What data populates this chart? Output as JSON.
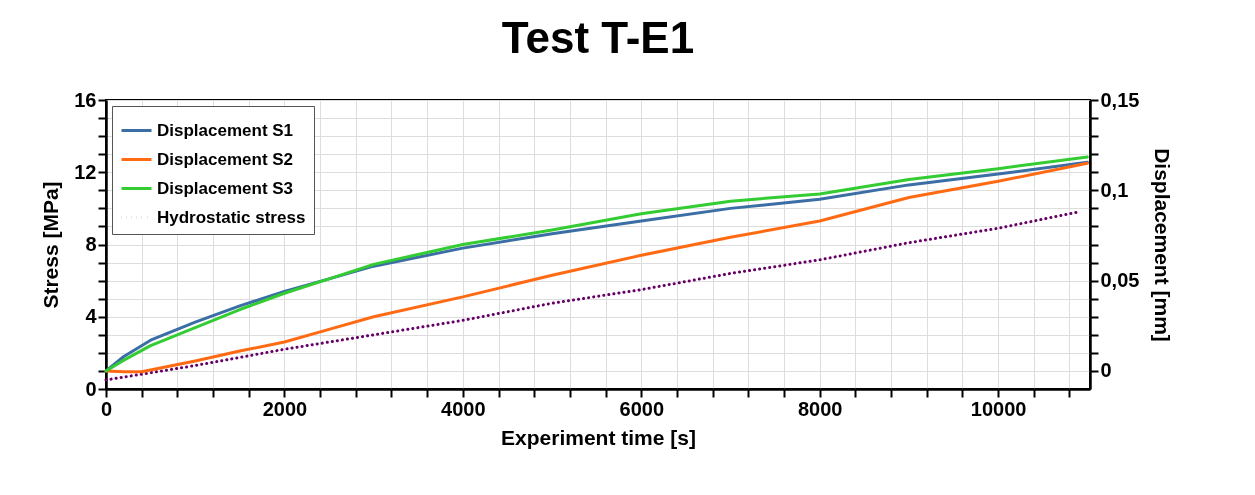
{
  "chart_data": {
    "type": "line",
    "title": "Test T-E1",
    "xlabel": "Experiment time [s]",
    "ylabel": "Stress [MPa]",
    "y2label": "Displacement [mm]",
    "xlim": [
      0,
      11030
    ],
    "ylim": [
      0,
      16
    ],
    "y2lim": [
      -0.01,
      0.15
    ],
    "xticks": [
      0,
      {
        "value": 400,
        "label": null
      },
      {
        "value": 800,
        "label": null
      },
      {
        "value": 1200,
        "label": null
      },
      {
        "value": 1600,
        "label": null
      },
      2000,
      {
        "value": 2400,
        "label": null
      },
      {
        "value": 2800,
        "label": null
      },
      {
        "value": 3200,
        "label": null
      },
      {
        "value": 3600,
        "label": null
      },
      4000,
      {
        "value": 4400,
        "label": null
      },
      {
        "value": 4800,
        "label": null
      },
      {
        "value": 5200,
        "label": null
      },
      {
        "value": 5600,
        "label": null
      },
      6000,
      {
        "value": 6400,
        "label": null
      },
      {
        "value": 6800,
        "label": null
      },
      {
        "value": 7200,
        "label": null
      },
      {
        "value": 7600,
        "label": null
      },
      8000,
      {
        "value": 8400,
        "label": null
      },
      {
        "value": 8800,
        "label": null
      },
      {
        "value": 9200,
        "label": null
      },
      {
        "value": 9600,
        "label": null
      },
      10000,
      {
        "value": 10400,
        "label": null
      },
      {
        "value": 10800,
        "label": null
      }
    ],
    "yticks": [
      0,
      {
        "value": 1,
        "label": null
      },
      {
        "value": 2,
        "label": null
      },
      {
        "value": 3,
        "label": null
      },
      4,
      {
        "value": 5,
        "label": null
      },
      {
        "value": 6,
        "label": null
      },
      {
        "value": 7,
        "label": null
      },
      8,
      {
        "value": 9,
        "label": null
      },
      {
        "value": 10,
        "label": null
      },
      {
        "value": 11,
        "label": null
      },
      12,
      {
        "value": 13,
        "label": null
      },
      {
        "value": 14,
        "label": null
      },
      {
        "value": 15,
        "label": null
      },
      16
    ],
    "y2ticks": [
      0,
      {
        "value": 0.01,
        "label": null
      },
      {
        "value": 0.02,
        "label": null
      },
      {
        "value": 0.03,
        "label": null
      },
      {
        "value": 0.04,
        "label": null
      },
      {
        "value": 0.05,
        "label": "0,05"
      },
      {
        "value": 0.06,
        "label": null
      },
      {
        "value": 0.07,
        "label": null
      },
      {
        "value": 0.08,
        "label": null
      },
      {
        "value": 0.09,
        "label": null
      },
      {
        "value": 0.1,
        "label": "0,1"
      },
      {
        "value": 0.11,
        "label": null
      },
      {
        "value": 0.12,
        "label": null
      },
      {
        "value": 0.13,
        "label": null
      },
      {
        "value": 0.14,
        "label": null
      },
      {
        "value": 0.15,
        "label": "0,15"
      }
    ],
    "grid": true,
    "legend": "top left",
    "series": [
      {
        "name": "Displacement S1",
        "color": "#3a6ea5",
        "axis": "y2",
        "line_style": "solid",
        "x": [
          0,
          200,
          500,
          1000,
          1500,
          2000,
          2500,
          3000,
          4000,
          5000,
          6000,
          7000,
          8000,
          9000,
          10000,
          11000
        ],
        "values": [
          0,
          0.008,
          0.017,
          0.027,
          0.036,
          0.044,
          0.051,
          0.058,
          0.068,
          0.076,
          0.083,
          0.09,
          0.095,
          0.103,
          0.109,
          0.1155
        ]
      },
      {
        "name": "Displacement S2",
        "color": "#ff6a13",
        "axis": "y2",
        "line_style": "solid",
        "x": [
          0,
          200,
          400,
          1000,
          1500,
          2000,
          2500,
          3000,
          4000,
          5000,
          6000,
          7000,
          8000,
          9000,
          10000,
          11000
        ],
        "values": [
          0,
          -0.0005,
          -0.0005,
          0.0055,
          0.011,
          0.016,
          0.023,
          0.03,
          0.041,
          0.053,
          0.064,
          0.074,
          0.083,
          0.096,
          0.105,
          0.115
        ]
      },
      {
        "name": "Displacement S3",
        "color": "#33cc33",
        "axis": "y2",
        "line_style": "solid",
        "x": [
          0,
          200,
          500,
          1000,
          1500,
          2000,
          2500,
          3000,
          4000,
          5000,
          6000,
          7000,
          8000,
          9000,
          10000,
          11000
        ],
        "values": [
          0,
          0.006,
          0.014,
          0.024,
          0.034,
          0.043,
          0.051,
          0.059,
          0.07,
          0.078,
          0.087,
          0.094,
          0.098,
          0.106,
          0.112,
          0.1185
        ]
      },
      {
        "name": "Hydrostatic stress",
        "color": "#660066",
        "axis": "y",
        "line_style": "dotted",
        "x": [
          0,
          1000,
          2000,
          3000,
          4000,
          5000,
          6000,
          7000,
          8000,
          9000,
          10000,
          10900
        ],
        "values": [
          0.5,
          1.3,
          2.2,
          3.0,
          3.8,
          4.75,
          5.5,
          6.4,
          7.15,
          8.1,
          8.9,
          9.8
        ]
      }
    ]
  }
}
